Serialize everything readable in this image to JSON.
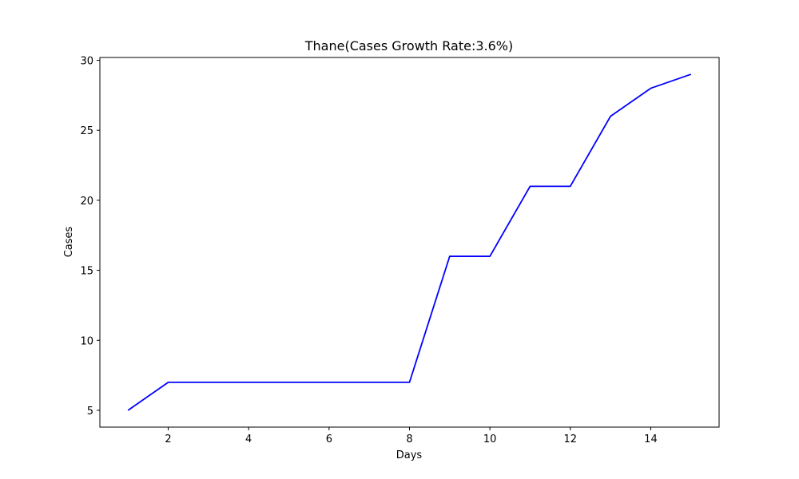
{
  "chart_data": {
    "type": "line",
    "title": "Thane(Cases Growth Rate:3.6%)",
    "xlabel": "Days",
    "ylabel": "Cases",
    "x": [
      1,
      2,
      3,
      4,
      5,
      6,
      7,
      8,
      9,
      10,
      11,
      12,
      13,
      14,
      15
    ],
    "series": [
      {
        "values": [
          5,
          7,
          7,
          7,
          7,
          7,
          7,
          7,
          16,
          16,
          21,
          21,
          26,
          28,
          29
        ],
        "color": "#0000ff"
      }
    ],
    "xlim": [
      0.3,
      15.7
    ],
    "ylim": [
      3.8,
      30.2
    ],
    "xticks": [
      2,
      4,
      6,
      8,
      10,
      12,
      14
    ],
    "yticks": [
      5,
      10,
      15,
      20,
      25,
      30
    ],
    "grid": false,
    "legend": "none"
  }
}
